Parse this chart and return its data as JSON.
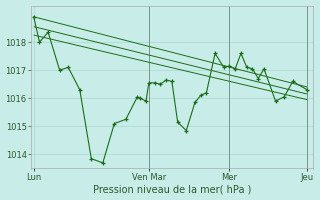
{
  "background_color": "#c8ece8",
  "grid_color": "#aad8d0",
  "line_color": "#1a6e1a",
  "marker_color": "#1a6e1a",
  "xlabel": "Pression niveau de la mer( hPa )",
  "ylim": [
    1013.5,
    1019.3
  ],
  "yticks": [
    1014,
    1015,
    1016,
    1017,
    1018
  ],
  "xtick_labels": [
    "Lun",
    "Ven Mar",
    "Mer",
    "Jeu"
  ],
  "xtick_positions": [
    0,
    40,
    68,
    95
  ],
  "main_x": [
    0,
    2,
    5,
    9,
    12,
    16,
    20,
    24,
    28,
    32,
    36,
    37,
    39,
    40,
    42,
    44,
    46,
    48,
    50,
    53,
    56,
    58,
    60,
    63,
    66,
    68,
    70,
    72,
    74,
    76,
    78,
    80,
    84,
    87,
    90,
    95
  ],
  "main_y": [
    1018.9,
    1018.0,
    1018.35,
    1017.0,
    1017.1,
    1016.3,
    1013.85,
    1013.7,
    1015.1,
    1015.25,
    1016.05,
    1016.0,
    1015.9,
    1016.55,
    1016.55,
    1016.5,
    1016.65,
    1016.6,
    1015.15,
    1014.85,
    1015.85,
    1016.1,
    1016.2,
    1017.6,
    1017.1,
    1017.15,
    1017.05,
    1017.6,
    1017.1,
    1017.05,
    1016.7,
    1017.05,
    1015.9,
    1016.05,
    1016.6,
    1016.3
  ],
  "trend1_x": [
    0,
    95
  ],
  "trend1_y": [
    1018.9,
    1016.4
  ],
  "trend2_x": [
    0,
    95
  ],
  "trend2_y": [
    1018.55,
    1016.15
  ],
  "trend3_x": [
    0,
    95
  ],
  "trend3_y": [
    1018.25,
    1015.95
  ],
  "vline_positions": [
    40,
    68,
    95
  ],
  "vline_color": "#556655"
}
